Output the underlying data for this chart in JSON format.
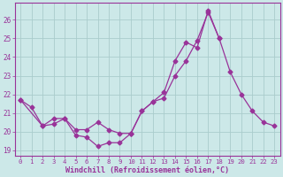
{
  "xlabel": "Windchill (Refroidissement éolien,°C)",
  "bg_color": "#cce8e8",
  "grid_color": "#aacccc",
  "line_color": "#993399",
  "ylim": [
    18.7,
    26.9
  ],
  "yticks": [
    19,
    20,
    21,
    22,
    23,
    24,
    25,
    26
  ],
  "xticks": [
    0,
    1,
    2,
    3,
    4,
    5,
    6,
    7,
    8,
    9,
    10,
    11,
    12,
    13,
    14,
    15,
    16,
    17,
    18,
    19,
    20,
    21,
    22,
    23
  ],
  "curve1_x": [
    0,
    1,
    2,
    3,
    4,
    5,
    6,
    7,
    8,
    9,
    10
  ],
  "curve1_y": [
    21.7,
    21.3,
    20.3,
    20.4,
    20.7,
    19.8,
    19.7,
    19.2,
    19.4,
    19.4,
    19.9
  ],
  "curve2_x": [
    0,
    2,
    3,
    4,
    5,
    6,
    7,
    8,
    9,
    10,
    11,
    12,
    13,
    14,
    15,
    16,
    17,
    18
  ],
  "curve2_y": [
    21.7,
    20.3,
    20.7,
    20.7,
    20.1,
    20.1,
    20.5,
    20.1,
    19.9,
    19.9,
    21.1,
    21.6,
    21.8,
    23.0,
    23.8,
    24.9,
    26.4,
    25.0
  ],
  "curve3_x": [
    10,
    11,
    12,
    13,
    14,
    15,
    16,
    17,
    18,
    19,
    20,
    21,
    22,
    23
  ],
  "curve3_y": [
    19.9,
    21.1,
    21.6,
    22.1,
    23.8,
    24.8,
    24.5,
    26.5,
    25.0,
    23.2,
    22.0,
    21.1,
    20.5,
    20.3
  ]
}
